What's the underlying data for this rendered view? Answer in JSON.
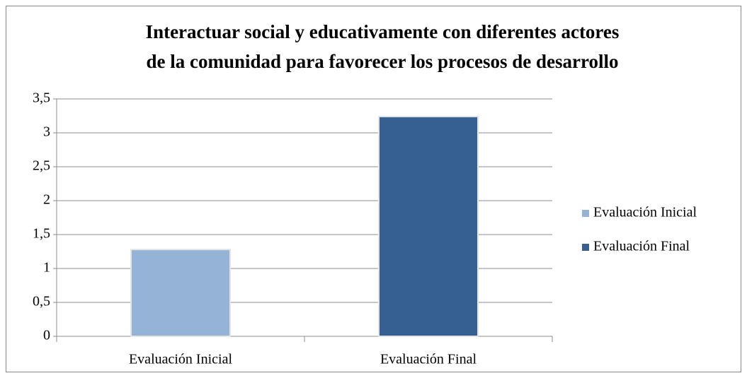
{
  "chart_data": {
    "type": "bar",
    "title": [
      "Interactuar social y educativamente con diferentes actores",
      "de la comunidad para favorecer los procesos de desarrollo"
    ],
    "categories": [
      "Evaluación Inicial",
      "Evaluación Final"
    ],
    "series": [
      {
        "name": "Evaluación Inicial",
        "color": "#95b3d7",
        "values": [
          1.28,
          null
        ]
      },
      {
        "name": "Evaluación Final",
        "color": "#366092",
        "values": [
          null,
          3.24
        ]
      }
    ],
    "ylim": [
      0,
      3.5
    ],
    "yticks": [
      0,
      {
        "value": 0.5,
        "label": "0,5"
      },
      1,
      {
        "value": 1.5,
        "label": "1,5"
      },
      2,
      {
        "value": 2.5,
        "label": "2,5"
      },
      3,
      {
        "value": 3.5,
        "label": "3,5"
      }
    ],
    "grid": true,
    "legend": "right"
  }
}
